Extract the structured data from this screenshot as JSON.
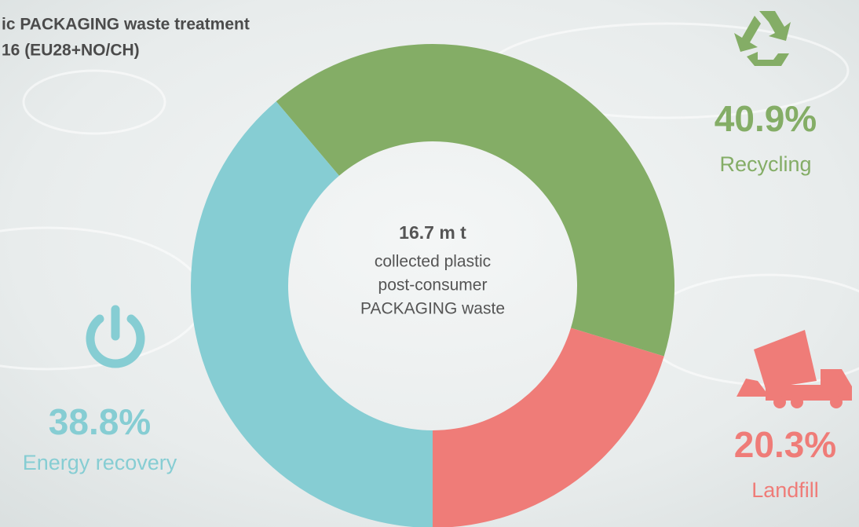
{
  "chart_data": {
    "type": "donut",
    "title": [
      "ic PACKAGING waste treatment",
      "16 (EU28+NO/CH)"
    ],
    "center_text": [
      "16.7 m t",
      "collected plastic",
      "post-consumer",
      "PACKAGING waste"
    ],
    "categories": [
      "Recycling",
      "Landfill",
      "Energy recovery"
    ],
    "values": [
      40.9,
      20.3,
      38.8
    ],
    "value_labels": [
      "40.9%",
      "20.3%",
      "38.8%"
    ],
    "colors": [
      "#84ad66",
      "#ef7c78",
      "#86cdd3"
    ]
  }
}
